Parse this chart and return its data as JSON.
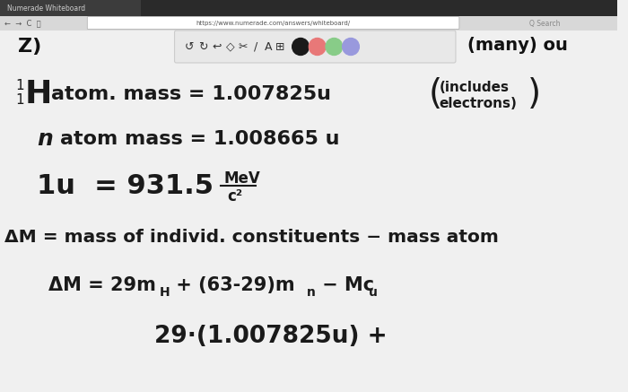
{
  "bg_color": "#f0f0f0",
  "whiteboard_color": "#f8f8f8",
  "text_color": "#1a1a1a",
  "browser_tab_color": "#2d2d2d",
  "browser_bar_color": "#e8e8e8",
  "addr_bar_color": "#ffffff",
  "toolbar_bg": "#e0e0e0",
  "toolbar_border": "#bbbbbb",
  "circle_colors": [
    "#1a1a1a",
    "#e87878",
    "#88cc88",
    "#9999dd"
  ],
  "line1_sup": "1",
  "line1_sub": "1",
  "line1_H": "H",
  "line1_text": "atom. mass = 1.007825u",
  "line1_note1": "(includes",
  "line1_note2": "electrons)",
  "line2_n": "n",
  "line2_text": "atom mass = 1.008665 u",
  "line3_left": "1u  = 931.5",
  "line3_mev": "MeV",
  "line3_c2": "c²",
  "line4": "ΔM = mass of individ. constituents − mass atom",
  "line5a": "ΔM = 29m",
  "line5_H_sub": "H",
  "line5b": " + (63-29)m",
  "line5_n_sub": "n",
  "line5c": " − Mc",
  "line5_u_sub": "u",
  "line6": "29·(1.007825u) +",
  "top_right": "(many) ou",
  "top_left_partial": "Z)",
  "addr_text": "https://www.numerade.com/answers/whiteboard/",
  "tab_text": "Numerade Whiteboard"
}
